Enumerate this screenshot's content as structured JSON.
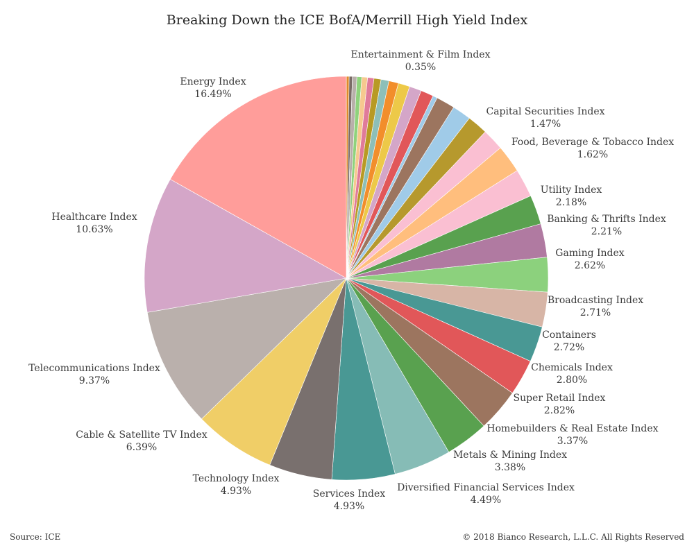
{
  "title": "Breaking Down the ICE BofA/Merrill High Yield Index",
  "footer": {
    "source": "Source: ICE",
    "copyright": "© 2018 Bianco Research, L.L.C. All Rights Reserved"
  },
  "chart_data": {
    "type": "pie",
    "title": "Breaking Down the ICE BofA/Merrill High Yield Index",
    "start": "top",
    "direction": "clockwise",
    "slices": [
      {
        "label": "",
        "value": 0.22,
        "color": "#e08a2a",
        "labeled": false
      },
      {
        "label": "",
        "value": 0.25,
        "color": "#7a6b66",
        "labeled": false
      },
      {
        "label": "",
        "value": 0.35,
        "color": "#b8afaa",
        "labeled": false
      },
      {
        "label": "",
        "value": 0.38,
        "color": "#8fd27c",
        "labeled": false
      },
      {
        "label": "",
        "value": 0.45,
        "color": "#f6c98f",
        "labeled": false
      },
      {
        "label": "",
        "value": 0.5,
        "color": "#e07b9a",
        "labeled": false
      },
      {
        "label": "",
        "value": 0.55,
        "color": "#b89a24",
        "labeled": false
      },
      {
        "label": "",
        "value": 0.62,
        "color": "#8dbfb8",
        "labeled": false
      },
      {
        "label": "",
        "value": 0.75,
        "color": "#f28e2b",
        "labeled": false
      },
      {
        "label": "",
        "value": 0.9,
        "color": "#edc948",
        "labeled": false
      },
      {
        "label": "",
        "value": 0.95,
        "color": "#d4a6c8",
        "labeled": false
      },
      {
        "label": "",
        "value": 1.0,
        "color": "#e15759",
        "labeled": false
      },
      {
        "label": "Entertainment & Film Index",
        "value": 0.35,
        "value_label": "0.35%",
        "color": "#a0cbe8",
        "labeled": true
      },
      {
        "label": "Capital Securities Index",
        "value": 1.47,
        "value_label": "1.47%",
        "color": "#9c755f",
        "labeled": true
      },
      {
        "label": "",
        "value": 1.47,
        "color": "#a0cbe8",
        "labeled": false
      },
      {
        "label": "Food, Beverage & Tobacco Index",
        "value": 1.62,
        "value_label": "1.62%",
        "color": "#b6992d",
        "labeled": true
      },
      {
        "label": "",
        "value": 1.7,
        "color": "#fabfd2",
        "labeled": false
      },
      {
        "label": "Utility Index",
        "value": 2.18,
        "value_label": "2.18%",
        "color": "#ffbe7d",
        "labeled": true
      },
      {
        "label": "Banking & Thrifts Index",
        "value": 2.21,
        "value_label": "2.21%",
        "color": "#fabfd2",
        "labeled": true
      },
      {
        "label": "",
        "value": 2.3,
        "color": "#59a14f",
        "labeled": false
      },
      {
        "label": "Gaming Index",
        "value": 2.62,
        "value_label": "2.62%",
        "color": "#b07aa1",
        "labeled": true
      },
      {
        "label": "Broadcasting Index",
        "value": 2.71,
        "value_label": "2.71%",
        "color": "#8cd17d",
        "labeled": true
      },
      {
        "label": "Containers",
        "value": 2.72,
        "value_label": "2.72%",
        "color": "#d7b5a6",
        "labeled": true
      },
      {
        "label": "Chemicals Index",
        "value": 2.8,
        "value_label": "2.80%",
        "color": "#499894",
        "labeled": true
      },
      {
        "label": "Super Retail Index",
        "value": 2.82,
        "value_label": "2.82%",
        "color": "#e15759",
        "labeled": true
      },
      {
        "label": "Homebuilders & Real Estate Index",
        "value": 3.37,
        "value_label": "3.37%",
        "color": "#9c755f",
        "labeled": true
      },
      {
        "label": "Metals & Mining Index",
        "value": 3.38,
        "value_label": "3.38%",
        "color": "#59a14f",
        "labeled": true
      },
      {
        "label": "Diversified Financial Services Index",
        "value": 4.49,
        "value_label": "4.49%",
        "color": "#86bcb6",
        "labeled": true
      },
      {
        "label": "Services Index",
        "value": 4.93,
        "value_label": "4.93%",
        "color": "#499894",
        "labeled": true
      },
      {
        "label": "Technology Index",
        "value": 4.93,
        "value_label": "4.93%",
        "color": "#79706e",
        "labeled": true
      },
      {
        "label": "Cable & Satellite TV Index",
        "value": 6.39,
        "value_label": "6.39%",
        "color": "#f0ce67",
        "labeled": true
      },
      {
        "label": "Telecommunications Index",
        "value": 9.37,
        "value_label": "9.37%",
        "color": "#bab0ac",
        "labeled": true
      },
      {
        "label": "Healthcare Index",
        "value": 10.63,
        "value_label": "10.63%",
        "color": "#d4a6c8",
        "labeled": true
      },
      {
        "label": "Energy Index",
        "value": 16.49,
        "value_label": "16.49%",
        "color": "#ff9d9a",
        "labeled": true
      }
    ]
  }
}
